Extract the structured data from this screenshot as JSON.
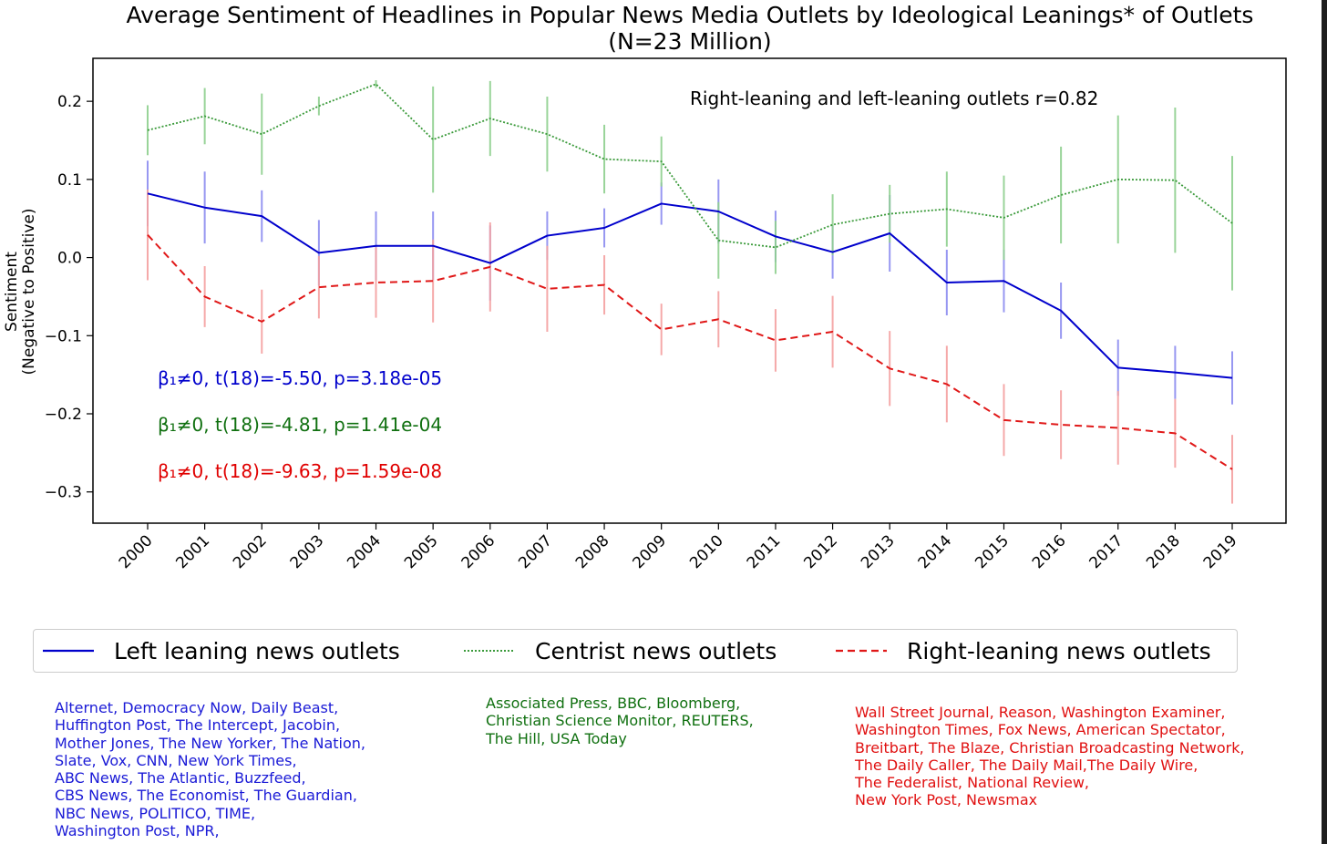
{
  "colors": {
    "left": "#0000cc",
    "centrist": "#3a9a3a",
    "right": "#e01818",
    "left_err": "#8c8cf0",
    "centrist_err": "#8fd08f",
    "right_err": "#f5a0a0",
    "annot_left": "#0000cc",
    "annot_centrist": "#107010",
    "annot_right": "#e00000"
  },
  "chart_data": {
    "type": "line",
    "title": "Average Sentiment of Headlines in Popular News Media Outlets by Ideological Leanings* of Outlets",
    "subtitle": "(N=23 Million)",
    "ylabel": "Sentiment",
    "ylabel_sub": "(Negative to Positive)",
    "xlabel": "",
    "ylim": [
      -0.34,
      0.255
    ],
    "yticks": [
      0.2,
      0.1,
      0.0,
      -0.1,
      -0.2,
      -0.3
    ],
    "ytick_labels": [
      "0.2",
      "0.1",
      "0.0",
      "−0.1",
      "−0.2",
      "−0.3"
    ],
    "x": [
      "2000",
      "2001",
      "2002",
      "2003",
      "2004",
      "2005",
      "2006",
      "2007",
      "2008",
      "2009",
      "2010",
      "2011",
      "2012",
      "2013",
      "2014",
      "2015",
      "2016",
      "2017",
      "2018",
      "2019"
    ],
    "series": [
      {
        "name": "Left leaning news outlets",
        "key": "left",
        "style": "solid",
        "values": [
          0.082,
          0.064,
          0.053,
          0.006,
          0.015,
          0.015,
          -0.007,
          0.028,
          0.038,
          0.069,
          0.059,
          0.027,
          0.007,
          0.031,
          -0.032,
          -0.03,
          -0.068,
          -0.141,
          -0.147,
          -0.154
        ],
        "err": [
          0.042,
          0.046,
          0.033,
          0.042,
          0.044,
          0.044,
          0.048,
          0.031,
          0.025,
          0.027,
          0.041,
          0.033,
          0.034,
          0.049,
          0.042,
          0.04,
          0.036,
          0.036,
          0.034,
          0.034
        ]
      },
      {
        "name": "Centrist news outlets",
        "key": "centrist",
        "style": "dotted",
        "values": [
          0.163,
          0.181,
          0.158,
          0.194,
          0.222,
          0.151,
          0.178,
          0.158,
          0.126,
          0.123,
          0.022,
          0.013,
          0.042,
          0.056,
          0.062,
          0.051,
          0.08,
          0.1,
          0.099,
          0.044
        ],
        "err": [
          0.032,
          0.036,
          0.052,
          0.012,
          0.005,
          0.068,
          0.048,
          0.048,
          0.044,
          0.032,
          0.049,
          0.034,
          0.039,
          0.037,
          0.048,
          0.054,
          0.062,
          0.082,
          0.093,
          0.086
        ]
      },
      {
        "name": "Right-leaning news outlets",
        "key": "right",
        "style": "dashed",
        "values": [
          0.029,
          -0.05,
          -0.082,
          -0.038,
          -0.032,
          -0.03,
          -0.012,
          -0.04,
          -0.035,
          -0.092,
          -0.079,
          -0.106,
          -0.095,
          -0.142,
          -0.162,
          -0.208,
          -0.214,
          -0.218,
          -0.225,
          -0.271
        ],
        "err": [
          0.058,
          0.039,
          0.041,
          0.04,
          0.045,
          0.053,
          0.057,
          0.055,
          0.038,
          0.033,
          0.036,
          0.04,
          0.046,
          0.048,
          0.049,
          0.046,
          0.044,
          0.047,
          0.044,
          0.044
        ]
      }
    ],
    "annotations": [
      {
        "key": "corr",
        "text": "Right-leaning and left-leaning outlets r=0.82",
        "color": "#000000"
      },
      {
        "key": "left",
        "text": "β₁≠0, t(18)=-5.50, p=3.18e-05",
        "color": "#0000cc"
      },
      {
        "key": "centrist",
        "text": "β₁≠0, t(18)=-4.81, p=1.41e-04",
        "color": "#107010"
      },
      {
        "key": "right",
        "text": "β₁≠0, t(18)=-9.63, p=1.59e-08",
        "color": "#e00000"
      }
    ],
    "legend": {
      "placement": "bottom",
      "entries": [
        {
          "label": "Left leaning news outlets",
          "key": "left",
          "style": "solid"
        },
        {
          "label": "Centrist news outlets",
          "key": "centrist",
          "style": "dotted"
        },
        {
          "label": "Right-leaning news outlets",
          "key": "right",
          "style": "dashed"
        }
      ]
    },
    "grid": false
  },
  "outlets": {
    "left": "Alternet, Democracy Now, Daily Beast,\nHuffington Post, The Intercept, Jacobin,\nMother Jones, The New Yorker, The Nation,\nSlate, Vox, CNN, New York Times,\nABC News, The Atlantic, Buzzfeed,\nCBS News, The Economist, The Guardian,\nNBC News, POLITICO, TIME,\nWashington Post, NPR,",
    "centrist": "Associated Press, BBC, Bloomberg,\nChristian Science Monitor, REUTERS,\nThe Hill, USA Today",
    "right": "Wall Street Journal, Reason, Washington Examiner,\nWashington Times, Fox News, American Spectator,\nBreitbart, The Blaze, Christian Broadcasting Network,\nThe Daily Caller, The Daily Mail,The Daily Wire,\nThe Federalist, National Review,\nNew York Post, Newsmax"
  }
}
